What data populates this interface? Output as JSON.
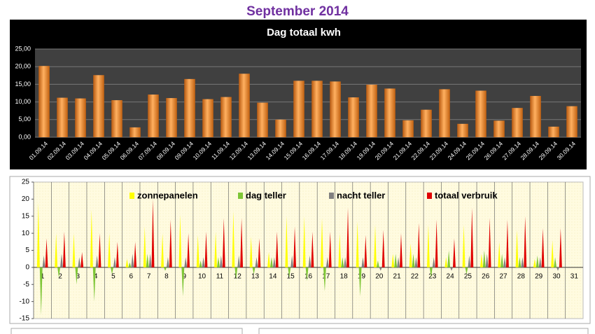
{
  "title": "September 2014",
  "chart_data": [
    {
      "type": "bar",
      "title": "Dag totaal kwh",
      "color": "#f28c28",
      "grid": true,
      "categories": [
        "01.09.14",
        "02.09.14",
        "03.09.14",
        "04.09.14",
        "05.09.14",
        "06.09.14",
        "07.09.14",
        "08.09.14",
        "09.09.14",
        "10.09.14",
        "11.09.14",
        "12.09.14",
        "13.09.14",
        "14.09.14",
        "15.09.14",
        "16.09.14",
        "17.09.14",
        "18.09.14",
        "19.09.14",
        "20.09.14",
        "21.09.14",
        "22.09.14",
        "23.09.14",
        "24.09.14",
        "25.09.14",
        "26.09.14",
        "27.09.14",
        "28.09.14",
        "29.09.14",
        "30.09.14"
      ],
      "values": [
        20.2,
        11.2,
        11.0,
        17.6,
        10.5,
        2.8,
        12.1,
        11.1,
        16.5,
        10.8,
        11.4,
        18.0,
        9.8,
        5.0,
        16.0,
        16.0,
        15.8,
        11.3,
        14.9,
        13.8,
        4.8,
        7.8,
        13.6,
        3.8,
        13.2,
        4.7,
        8.3,
        11.7,
        3.0,
        8.8
      ],
      "ylim": [
        0,
        25
      ],
      "yticks": [
        {
          "value": 0,
          "label": "0,00"
        },
        {
          "value": 5,
          "label": "5,00"
        },
        {
          "value": 10,
          "label": "10,00"
        },
        {
          "value": 15,
          "label": "15,00"
        },
        {
          "value": 20,
          "label": "20,00"
        },
        {
          "value": 25,
          "label": "25,00"
        }
      ]
    },
    {
      "type": "bar",
      "grid": false,
      "categories": [
        "1",
        "2",
        "3",
        "4",
        "5",
        "6",
        "7",
        "8",
        "9",
        "10",
        "11",
        "12",
        "13",
        "14",
        "15",
        "16",
        "17",
        "18",
        "19",
        "20",
        "21",
        "22",
        "23",
        "24",
        "25",
        "26",
        "27",
        "28",
        "29",
        "30",
        "31"
      ],
      "series": [
        {
          "name": "zonnepanelen",
          "color": "#ffff00",
          "values": [
            19,
            10,
            10,
            17,
            10,
            2.5,
            12,
            10,
            15.5,
            9.5,
            10.5,
            16.5,
            9,
            4.5,
            15,
            15,
            14.5,
            10,
            13.5,
            12.5,
            4,
            7,
            12.5,
            3,
            12.5,
            4,
            7.5,
            11,
            2.5,
            8,
            null
          ]
        },
        {
          "name": "dag teller",
          "color": "#7ec636",
          "values": [
            -14,
            -3,
            -5,
            -10,
            -2,
            1.5,
            4,
            -1,
            -8.5,
            2,
            3,
            -3.5,
            -2,
            3,
            -3,
            -4,
            -7,
            3,
            -8.5,
            2,
            4,
            4,
            -3,
            5,
            -2,
            5,
            4,
            3,
            3.5,
            3,
            null
          ]
        },
        {
          "name": "nacht teller",
          "color": "#808080",
          "values": [
            3.5,
            4,
            3,
            3.5,
            3,
            4,
            4,
            3,
            3,
            3,
            3.5,
            3.5,
            3,
            3,
            3.5,
            3.5,
            3,
            3,
            3,
            -1,
            3,
            3,
            3,
            -1,
            3.5,
            4,
            3,
            3,
            3,
            -1,
            null
          ]
        },
        {
          "name": "totaal verbruik",
          "color": "#e00000",
          "values": [
            8.5,
            10.5,
            4.5,
            10,
            7.5,
            7.5,
            20,
            14,
            10,
            10.5,
            14.5,
            14.5,
            8.5,
            10.5,
            12,
            10.5,
            10.5,
            17.5,
            9.5,
            11,
            10,
            13,
            14,
            8.5,
            17.5,
            14.5,
            14,
            15,
            11.5,
            11.5,
            null
          ]
        }
      ],
      "ylim": [
        -15,
        25
      ],
      "yticks": [
        -15,
        -10,
        -5,
        0,
        5,
        10,
        15,
        20,
        25
      ]
    }
  ]
}
